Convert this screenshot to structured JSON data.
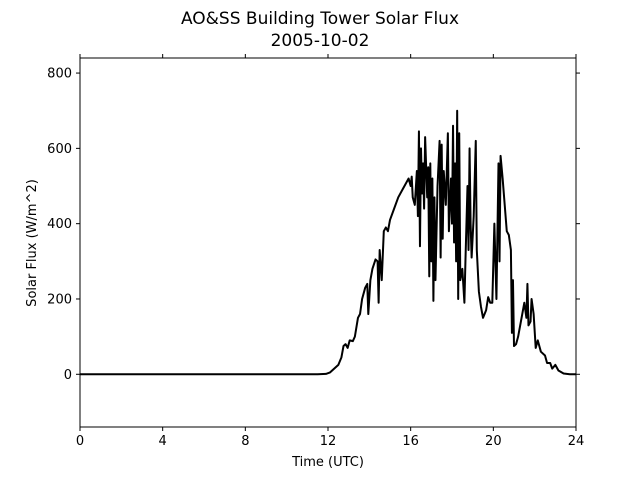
{
  "chart_data": {
    "type": "line",
    "title": "AO&SS Building Tower Solar Flux",
    "subtitle": "2005-10-02",
    "xlabel": "Time (UTC)",
    "ylabel": "Solar Flux (W/m^2)",
    "xlim": [
      0,
      24
    ],
    "ylim": [
      -140,
      840
    ],
    "xticks": [
      0,
      4,
      8,
      12,
      16,
      20,
      24
    ],
    "yticks": [
      0,
      200,
      400,
      600,
      800
    ],
    "grid": false,
    "series": [
      {
        "color": "#000000",
        "points": [
          [
            0,
            0
          ],
          [
            11.5,
            0
          ],
          [
            11.9,
            1
          ],
          [
            12.1,
            5
          ],
          [
            12.3,
            15
          ],
          [
            12.5,
            25
          ],
          [
            12.65,
            45
          ],
          [
            12.75,
            75
          ],
          [
            12.85,
            80
          ],
          [
            12.95,
            70
          ],
          [
            13.05,
            90
          ],
          [
            13.2,
            88
          ],
          [
            13.3,
            100
          ],
          [
            13.45,
            150
          ],
          [
            13.55,
            160
          ],
          [
            13.65,
            200
          ],
          [
            13.8,
            230
          ],
          [
            13.9,
            240
          ],
          [
            13.95,
            160
          ],
          [
            14.05,
            250
          ],
          [
            14.15,
            280
          ],
          [
            14.3,
            305
          ],
          [
            14.4,
            300
          ],
          [
            14.45,
            190
          ],
          [
            14.5,
            330
          ],
          [
            14.6,
            250
          ],
          [
            14.7,
            380
          ],
          [
            14.8,
            390
          ],
          [
            14.9,
            380
          ],
          [
            15.0,
            410
          ],
          [
            15.2,
            440
          ],
          [
            15.4,
            470
          ],
          [
            15.6,
            490
          ],
          [
            15.7,
            500
          ],
          [
            15.8,
            510
          ],
          [
            15.9,
            520
          ],
          [
            16.0,
            500
          ],
          [
            16.05,
            525
          ],
          [
            16.1,
            470
          ],
          [
            16.2,
            450
          ],
          [
            16.3,
            540
          ],
          [
            16.35,
            420
          ],
          [
            16.4,
            645
          ],
          [
            16.45,
            340
          ],
          [
            16.5,
            600
          ],
          [
            16.55,
            480
          ],
          [
            16.6,
            560
          ],
          [
            16.65,
            440
          ],
          [
            16.7,
            630
          ],
          [
            16.8,
            470
          ],
          [
            16.85,
            550
          ],
          [
            16.9,
            260
          ],
          [
            16.95,
            560
          ],
          [
            17.0,
            300
          ],
          [
            17.05,
            520
          ],
          [
            17.1,
            195
          ],
          [
            17.15,
            470
          ],
          [
            17.2,
            250
          ],
          [
            17.3,
            500
          ],
          [
            17.4,
            620
          ],
          [
            17.45,
            310
          ],
          [
            17.5,
            610
          ],
          [
            17.55,
            360
          ],
          [
            17.6,
            540
          ],
          [
            17.7,
            450
          ],
          [
            17.8,
            640
          ],
          [
            17.85,
            380
          ],
          [
            17.95,
            520
          ],
          [
            18.0,
            400
          ],
          [
            18.05,
            660
          ],
          [
            18.1,
            350
          ],
          [
            18.15,
            560
          ],
          [
            18.2,
            300
          ],
          [
            18.25,
            700
          ],
          [
            18.3,
            200
          ],
          [
            18.35,
            640
          ],
          [
            18.4,
            250
          ],
          [
            18.5,
            280
          ],
          [
            18.6,
            190
          ],
          [
            18.65,
            300
          ],
          [
            18.75,
            500
          ],
          [
            18.8,
            330
          ],
          [
            18.85,
            600
          ],
          [
            18.9,
            400
          ],
          [
            18.95,
            310
          ],
          [
            19.05,
            420
          ],
          [
            19.15,
            620
          ],
          [
            19.2,
            330
          ],
          [
            19.3,
            220
          ],
          [
            19.4,
            180
          ],
          [
            19.5,
            150
          ],
          [
            19.65,
            170
          ],
          [
            19.75,
            205
          ],
          [
            19.85,
            190
          ],
          [
            19.95,
            190
          ],
          [
            20.05,
            400
          ],
          [
            20.15,
            200
          ],
          [
            20.25,
            560
          ],
          [
            20.3,
            300
          ],
          [
            20.35,
            580
          ],
          [
            20.45,
            520
          ],
          [
            20.55,
            450
          ],
          [
            20.65,
            380
          ],
          [
            20.75,
            370
          ],
          [
            20.85,
            330
          ],
          [
            20.9,
            110
          ],
          [
            20.95,
            250
          ],
          [
            21.0,
            75
          ],
          [
            21.1,
            80
          ],
          [
            21.2,
            100
          ],
          [
            21.3,
            130
          ],
          [
            21.4,
            160
          ],
          [
            21.5,
            190
          ],
          [
            21.6,
            150
          ],
          [
            21.65,
            240
          ],
          [
            21.7,
            130
          ],
          [
            21.8,
            140
          ],
          [
            21.85,
            200
          ],
          [
            21.95,
            160
          ],
          [
            22.05,
            70
          ],
          [
            22.15,
            90
          ],
          [
            22.3,
            60
          ],
          [
            22.5,
            50
          ],
          [
            22.6,
            30
          ],
          [
            22.75,
            30
          ],
          [
            22.85,
            15
          ],
          [
            23.0,
            25
          ],
          [
            23.15,
            10
          ],
          [
            23.4,
            2
          ],
          [
            23.7,
            0
          ],
          [
            24,
            0
          ]
        ]
      }
    ]
  }
}
